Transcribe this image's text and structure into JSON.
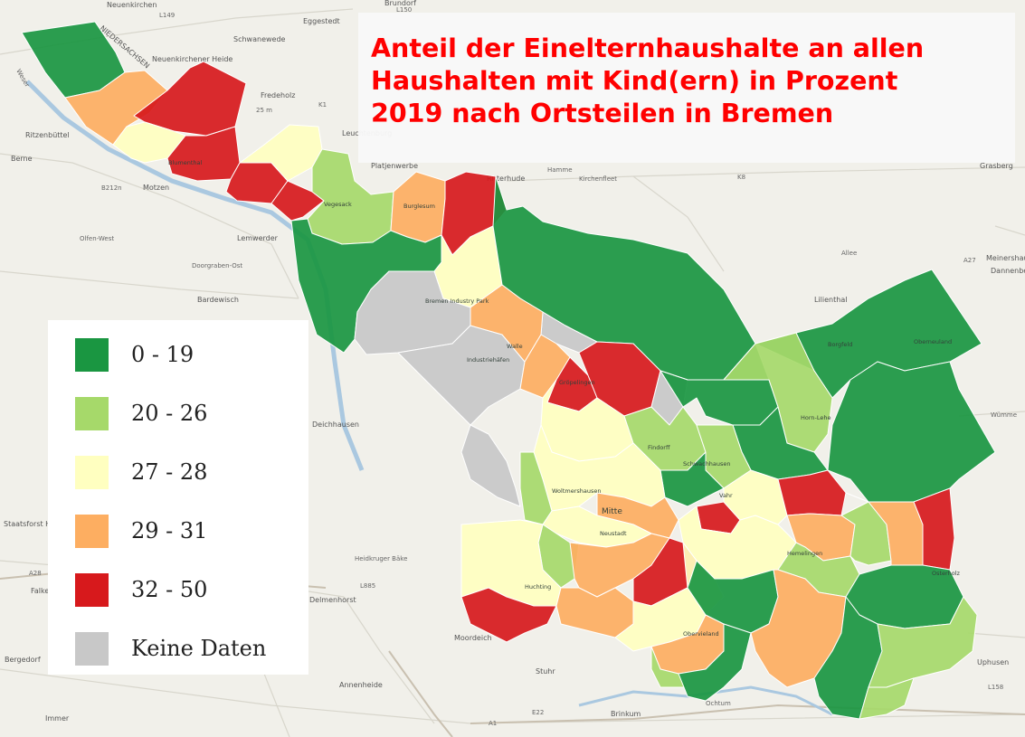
{
  "title": {
    "lines": [
      "Anteil der Einelternhaushalte an allen",
      "Haushalten mit Kind(ern) in Prozent",
      "2019 nach Ortsteilen in Bremen"
    ]
  },
  "legend": {
    "items": [
      {
        "label": "0 - 19",
        "color": "#1a9641"
      },
      {
        "label": "20 - 26",
        "color": "#a6d96a"
      },
      {
        "label": "27 - 28",
        "color": "#ffffc0"
      },
      {
        "label": "29 - 31",
        "color": "#fdae61"
      },
      {
        "label": "32 - 50",
        "color": "#d7191c"
      },
      {
        "label": "Keine Daten",
        "color": "#c8c8c8"
      }
    ]
  },
  "basemap": {
    "places": [
      "Neuenkirchen",
      "Eggestedt",
      "Brundorf",
      "Schwanewede",
      "NIEDERSACHSEN",
      "Neuenkirchener Heide",
      "Fredeholz",
      "Ritzenbüttel",
      "Berne",
      "Motzen",
      "Leuchtenburg",
      "Platjenwerbe",
      "Ritterhude",
      "Grasberg",
      "Lemwerder",
      "Bardewisch",
      "Lilienthal",
      "Deichhausen",
      "Meinershausen",
      "Dannenberg",
      "Uphusen",
      "Stuhr",
      "Brinkum",
      "Moordeich",
      "Annenheide",
      "Bergedorf",
      "Falkenburg",
      "Staatsforst Hasbruch",
      "Delmenhorst",
      "Immer",
      "Grasberg"
    ],
    "districts": [
      "Blumenthal",
      "Vegesack",
      "Burglesum",
      "Industriehäfen",
      "Bremen Industry Park",
      "Gröpelingen",
      "Findorff",
      "Horn-Lehe",
      "Borgfeld",
      "Woltmershausen",
      "Neustadt",
      "Obervieland",
      "Hemelingen",
      "Osterholz",
      "Oberneuland",
      "Huchting",
      "Vahr",
      "Schwachhausen",
      "Mitte",
      "Walle"
    ],
    "roads": [
      "L149",
      "L150",
      "K1",
      "A27",
      "A1",
      "A28",
      "L885",
      "E22",
      "L158",
      "K8",
      "B212n",
      "Wümme",
      "Ochtum",
      "Weser",
      "Hamme",
      "Kirchenfleet",
      "Olfen-West",
      "Doorgraben-Ost",
      "Heidkruger Bäke",
      "Allee",
      "25 m"
    ]
  }
}
